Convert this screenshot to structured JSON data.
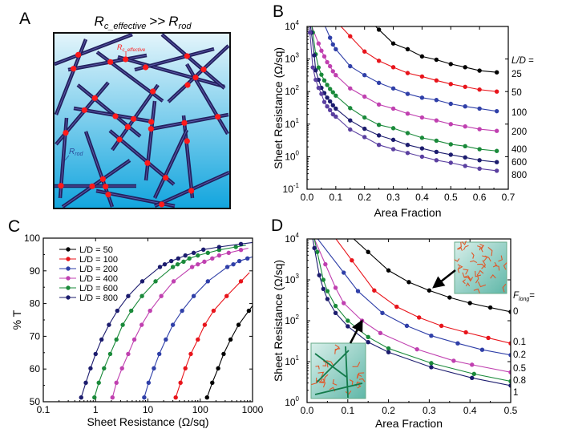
{
  "panel_labels": {
    "a": "A",
    "b": "B",
    "c": "C",
    "d": "D"
  },
  "panel_a": {
    "title_r1": "R",
    "title_sub1": "c_effective",
    "title_op": ">>",
    "title_r2": "R",
    "title_sub2": "rod",
    "contact_label": "R",
    "contact_sub": "c_effective",
    "rod_label": "R",
    "rod_sub": "rod",
    "colors": {
      "rod": "#23205e",
      "contact": "#ff1a1a",
      "bg_top": "#e4f5fb",
      "bg_bottom": "#12a5de"
    }
  },
  "chart_data": [
    {
      "type": "line",
      "panel": "B",
      "xlabel": "Area Fraction",
      "ylabel": "Sheet Resistance (Ω/sq)",
      "xscale": "linear",
      "yscale": "log",
      "xlim": [
        0,
        0.7
      ],
      "ylim": [
        0.1,
        10000
      ],
      "xticks": [
        0,
        0.1,
        0.2,
        0.3,
        0.4,
        0.5,
        0.6,
        0.7
      ],
      "xtick_labels": [
        "0.0",
        "0.1",
        "0.2",
        "0.3",
        "0.4",
        "0.5",
        "0.6",
        "0.7"
      ],
      "yticks": [
        0.1,
        1,
        10,
        100,
        1000,
        10000
      ],
      "ytick_base": "10",
      "ytick_exponents": [
        "-1",
        "0",
        "1",
        "2",
        "3",
        "4"
      ],
      "legend": {
        "title": "L/D",
        "title_suffix": " =",
        "placement": "right-outside"
      },
      "series": [
        {
          "name": "L/D = 25",
          "label": "25",
          "color": "#000000",
          "x": [
            0.25,
            0.3,
            0.35,
            0.4,
            0.45,
            0.5,
            0.55,
            0.6,
            0.66
          ],
          "y": [
            8000,
            3000,
            2000,
            1200,
            950,
            700,
            560,
            440,
            390
          ]
        },
        {
          "name": "L/D = 50",
          "label": "50",
          "color": "#e8141b",
          "x": [
            0.15,
            0.2,
            0.25,
            0.3,
            0.35,
            0.4,
            0.45,
            0.5,
            0.55,
            0.6,
            0.66
          ],
          "y": [
            5000,
            1700,
            880,
            560,
            370,
            290,
            220,
            170,
            140,
            115,
            100
          ]
        },
        {
          "name": "L/D = 100",
          "label": "100",
          "color": "#2f3fa8",
          "x": [
            0.08,
            0.09,
            0.1,
            0.15,
            0.2,
            0.25,
            0.3,
            0.35,
            0.4,
            0.45,
            0.5,
            0.55,
            0.6,
            0.66
          ],
          "y": [
            4500,
            2800,
            2000,
            600,
            320,
            185,
            125,
            85,
            65,
            55,
            42,
            35,
            30,
            25
          ]
        },
        {
          "name": "L/D = 200",
          "label": "200",
          "color": "#c040b0",
          "x": [
            0.04,
            0.05,
            0.06,
            0.07,
            0.08,
            0.09,
            0.1,
            0.15,
            0.2,
            0.25,
            0.3,
            0.35,
            0.4,
            0.45,
            0.5,
            0.55,
            0.6,
            0.66
          ],
          "y": [
            3000,
            1800,
            1200,
            800,
            600,
            420,
            320,
            125,
            70,
            40,
            30,
            21,
            16,
            13,
            10,
            8.5,
            7,
            6.2
          ]
        },
        {
          "name": "L/D = 400",
          "label": "400",
          "color": "#1a8a3a",
          "x": [
            0.02,
            0.03,
            0.04,
            0.05,
            0.06,
            0.07,
            0.08,
            0.09,
            0.1,
            0.15,
            0.2,
            0.25,
            0.3,
            0.35,
            0.4,
            0.45,
            0.5,
            0.55,
            0.6,
            0.66
          ],
          "y": [
            6500,
            1400,
            550,
            330,
            220,
            160,
            120,
            95,
            75,
            31,
            16,
            9.5,
            7.5,
            5.3,
            3.8,
            3.1,
            2.4,
            2.1,
            1.7,
            1.5
          ]
        },
        {
          "name": "L/D = 600",
          "label": "600",
          "color": "#1c1c6e",
          "x": [
            0.015,
            0.025,
            0.03,
            0.04,
            0.05,
            0.06,
            0.07,
            0.08,
            0.09,
            0.1,
            0.15,
            0.2,
            0.25,
            0.3,
            0.35,
            0.4,
            0.45,
            0.5,
            0.55,
            0.6,
            0.66
          ],
          "y": [
            6500,
            1300,
            450,
            230,
            130,
            90,
            65,
            50,
            38,
            30,
            13,
            7.2,
            4.5,
            3.3,
            2.3,
            1.8,
            1.4,
            1.15,
            0.95,
            0.78,
            0.68
          ]
        },
        {
          "name": "L/D = 800",
          "label": "800",
          "color": "#5a3fa0",
          "x": [
            0.01,
            0.02,
            0.03,
            0.04,
            0.05,
            0.06,
            0.07,
            0.08,
            0.09,
            0.1,
            0.15,
            0.2,
            0.25,
            0.3,
            0.35,
            0.4,
            0.45,
            0.5,
            0.55,
            0.6,
            0.66
          ],
          "y": [
            6500,
            550,
            230,
            130,
            85,
            48,
            35,
            27,
            20,
            17,
            6.8,
            4,
            2.3,
            1.7,
            1.3,
            1.0,
            0.78,
            0.65,
            0.52,
            0.43,
            0.37
          ]
        }
      ]
    },
    {
      "type": "line",
      "panel": "C",
      "xlabel": "Sheet Resistance (Ω/sq)",
      "ylabel": "% T",
      "xscale": "log",
      "yscale": "linear",
      "xlim": [
        0.1,
        1000
      ],
      "ylim": [
        50,
        100
      ],
      "xticks": [
        0.1,
        1,
        10,
        100,
        1000
      ],
      "xtick_labels": [
        "0.1",
        "1",
        "10",
        "100",
        "1000"
      ],
      "yticks": [
        50,
        60,
        70,
        80,
        90,
        100
      ],
      "ytick_labels": [
        "50",
        "60",
        "70",
        "80",
        "90",
        "100"
      ],
      "legend": {
        "placement": "top-left"
      },
      "series": [
        {
          "name": "L/D = 50",
          "color": "#000000",
          "x": [
            135,
            170,
            220,
            280,
            380,
            540,
            850
          ],
          "y": [
            51.3,
            55.8,
            60.2,
            64.6,
            69,
            73.5,
            77.8
          ]
        },
        {
          "name": "L/D = 100",
          "color": "#e8141b",
          "x": [
            34,
            42,
            52,
            66,
            90,
            122,
            180,
            320,
            600
          ],
          "y": [
            51.3,
            55.8,
            60.2,
            64.6,
            69,
            73.5,
            77.8,
            82.3,
            86.8
          ]
        },
        {
          "name": "L/D = 200",
          "color": "#2f3fa8",
          "x": [
            8.5,
            10.3,
            13,
            16.5,
            22,
            30,
            45,
            75,
            140,
            330,
            430,
            560,
            800
          ],
          "y": [
            51.3,
            55.8,
            60.2,
            64.6,
            69,
            73.5,
            77.8,
            82.3,
            86.8,
            91.2,
            92,
            93,
            93.8
          ]
        },
        {
          "name": "L/D = 400",
          "color": "#c040b0",
          "x": [
            2.1,
            2.5,
            3.2,
            4.2,
            5.5,
            7.6,
            11,
            18,
            31,
            70,
            90,
            120,
            170,
            230,
            350,
            600
          ],
          "y": [
            51.3,
            55.8,
            60.2,
            64.6,
            69,
            73.5,
            77.8,
            82.3,
            86.8,
            91.2,
            92,
            92.8,
            93.8,
            94.7,
            95.5,
            96.4
          ]
        },
        {
          "name": "L/D = 600",
          "color": "#1a8a3a",
          "x": [
            0.95,
            1.15,
            1.45,
            1.9,
            2.5,
            3.3,
            4.8,
            7.7,
            14,
            30,
            37,
            48,
            62,
            90,
            140,
            230,
            480
          ],
          "y": [
            51.3,
            55.8,
            60.2,
            64.6,
            69,
            73.5,
            77.8,
            82.3,
            86.8,
            91.2,
            92,
            92.8,
            93.8,
            94.7,
            95.5,
            96.4,
            97.3
          ]
        },
        {
          "name": "L/D = 800",
          "color": "#1c1c6e",
          "x": [
            0.53,
            0.65,
            0.8,
            1.0,
            1.3,
            1.8,
            2.6,
            4.2,
            7.8,
            17,
            21,
            28,
            38,
            52,
            75,
            115,
            230,
            600
          ],
          "y": [
            51.3,
            55.8,
            60.2,
            64.6,
            69,
            73.5,
            77.8,
            82.3,
            86.8,
            91.2,
            92,
            93,
            93.8,
            94.7,
            95.5,
            96.5,
            97.3,
            98.2
          ]
        }
      ]
    },
    {
      "type": "line",
      "panel": "D",
      "xlabel": "Area Fraction",
      "ylabel": "Sheet Resistance (Ω/sq)",
      "xscale": "linear",
      "yscale": "log",
      "xlim": [
        0,
        0.5
      ],
      "ylim": [
        1,
        10000
      ],
      "xticks": [
        0,
        0.1,
        0.2,
        0.3,
        0.4,
        0.5
      ],
      "xtick_labels": [
        "0.0",
        "0.1",
        "0.2",
        "0.3",
        "0.4",
        "0.5"
      ],
      "yticks": [
        1,
        10,
        100,
        1000,
        10000
      ],
      "ytick_base": "10",
      "ytick_exponents": [
        "0",
        "1",
        "2",
        "3",
        "4"
      ],
      "legend": {
        "title": "F",
        "title_sub": "long",
        "title_suffix": "=",
        "placement": "right-outside"
      },
      "series": [
        {
          "name": "F_long = 0",
          "label": "0",
          "color": "#000000",
          "x": [
            0.15,
            0.2,
            0.25,
            0.3,
            0.35,
            0.4,
            0.45,
            0.5
          ],
          "y": [
            4800,
            1700,
            880,
            550,
            370,
            270,
            210,
            165
          ]
        },
        {
          "name": "F_long = 0.1",
          "label": "0.1",
          "color": "#e8141b",
          "x": [
            0.11,
            0.165,
            0.22,
            0.275,
            0.33,
            0.39,
            0.445,
            0.5
          ],
          "y": [
            3000,
            550,
            220,
            120,
            75,
            52,
            38,
            28
          ]
        },
        {
          "name": "F_long = 0.2",
          "label": "0.2",
          "color": "#2f3fa8",
          "x": [
            0.09,
            0.125,
            0.185,
            0.245,
            0.305,
            0.37,
            0.43,
            0.5
          ],
          "y": [
            1500,
            530,
            155,
            75,
            43,
            28,
            19.5,
            14.5
          ]
        },
        {
          "name": "F_long = 0.5",
          "label": "0.5",
          "color": "#c040b0",
          "x": [
            0.045,
            0.07,
            0.09,
            0.135,
            0.18,
            0.27,
            0.36,
            0.405,
            0.5
          ],
          "y": [
            2400,
            640,
            270,
            100,
            50,
            20,
            10.5,
            8.4,
            5.5
          ]
        },
        {
          "name": "F_long = 0.8",
          "label": "0.8",
          "color": "#1a8a3a",
          "x": [
            0.025,
            0.04,
            0.05,
            0.07,
            0.1,
            0.15,
            0.2,
            0.305,
            0.41,
            0.5
          ],
          "y": [
            4800,
            1000,
            530,
            230,
            100,
            40,
            21,
            9.2,
            5,
            3.3
          ]
        },
        {
          "name": "F_long = 1",
          "label": "1",
          "color": "#1c1c6e",
          "x": [
            0.018,
            0.03,
            0.04,
            0.05,
            0.07,
            0.1,
            0.15,
            0.2,
            0.305,
            0.405,
            0.5
          ],
          "y": [
            6000,
            1300,
            600,
            340,
            155,
            73,
            30,
            17,
            7.3,
            4,
            2.6
          ]
        }
      ]
    }
  ]
}
